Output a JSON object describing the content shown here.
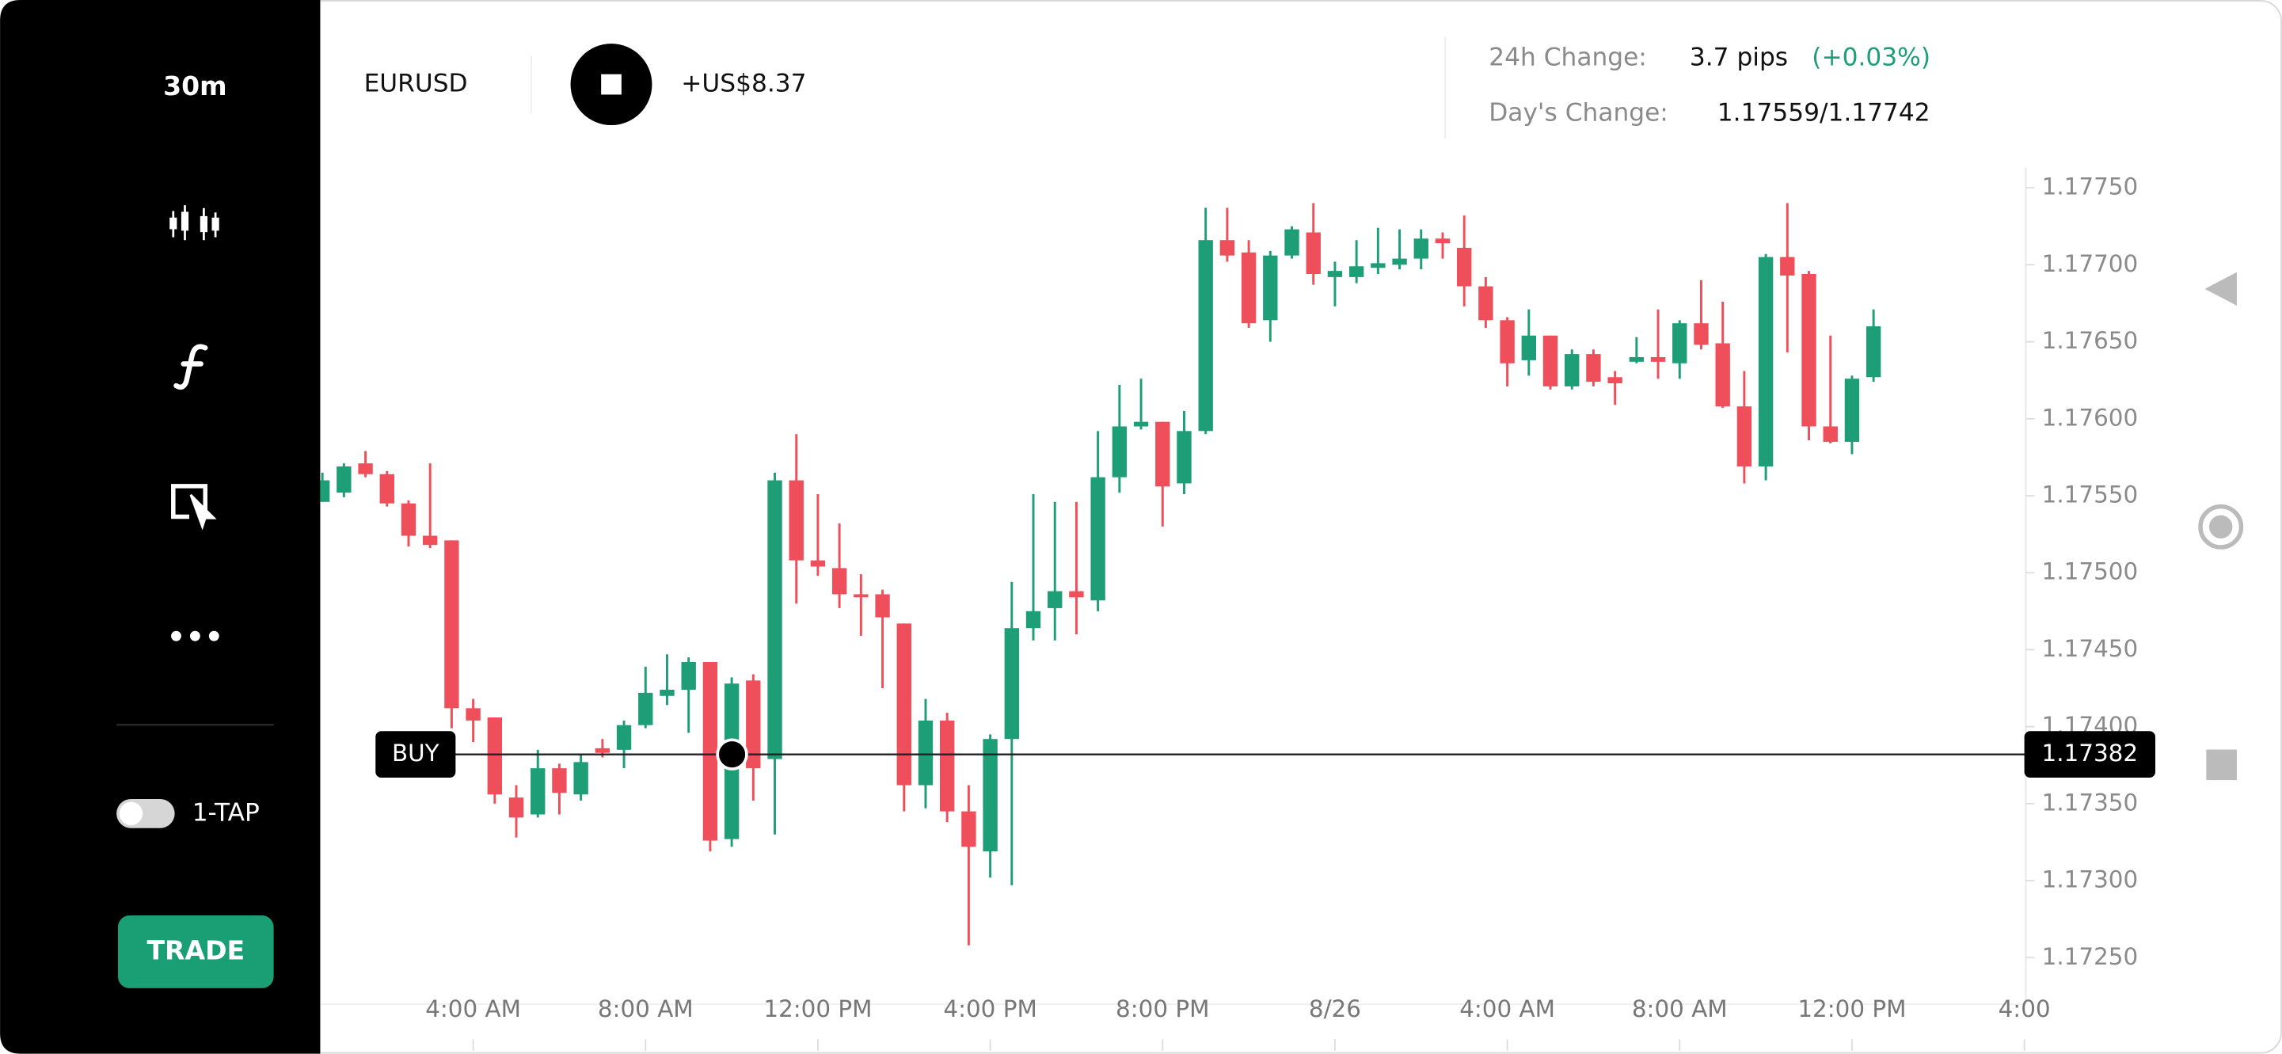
{
  "sidebar": {
    "timeframe": "30m",
    "toggle_label": "1-TAP",
    "trade_button": "TRADE"
  },
  "header": {
    "symbol": "EURUSD",
    "pnl": "+US$8.37",
    "change_24h_label": "24h Change:",
    "change_24h_pips": "3.7 pips",
    "change_24h_pct": "(+0.03%)",
    "days_change_label": "Day's Change:",
    "days_change_value": "1.17559/1.17742"
  },
  "chart_data": {
    "type": "candlestick",
    "up_color": "#1e9e77",
    "down_color": "#ef4f5b",
    "x": [
      0.5,
      1,
      1.5,
      2,
      2.5,
      3,
      3.5,
      4,
      4.5,
      5,
      5.5,
      6,
      6.5,
      7,
      7.5,
      8,
      8.5,
      9,
      9.5,
      10,
      10.5,
      11,
      11.5,
      12,
      12.5,
      13,
      13.5,
      14,
      14.5,
      15,
      15.5,
      16,
      16.5,
      17,
      17.5,
      18,
      18.5,
      19,
      19.5,
      20,
      20.5,
      21,
      21.5,
      22,
      22.5,
      23,
      23.5,
      24,
      24.5,
      25,
      25.5,
      26,
      26.5,
      27,
      27.5,
      28,
      28.5,
      29,
      29.5,
      30,
      30.5,
      31,
      31.5,
      32,
      32.5,
      33,
      33.5,
      34,
      34.5,
      35,
      35.5,
      36,
      36.5
    ],
    "open": [
      1.17546,
      1.17552,
      1.17571,
      1.17564,
      1.17545,
      1.17524,
      1.17521,
      1.17412,
      1.17406,
      1.17354,
      1.17343,
      1.17373,
      1.17356,
      1.17386,
      1.17385,
      1.17401,
      1.1742,
      1.17424,
      1.17442,
      1.17327,
      1.1743,
      1.17379,
      1.1756,
      1.17508,
      1.17503,
      1.17486,
      1.17486,
      1.17467,
      1.17362,
      1.17404,
      1.17345,
      1.17319,
      1.17392,
      1.17464,
      1.17477,
      1.17488,
      1.17482,
      1.17562,
      1.17595,
      1.17598,
      1.17558,
      1.17592,
      1.17716,
      1.17708,
      1.17664,
      1.17706,
      1.17721,
      1.17692,
      1.17692,
      1.17698,
      1.177,
      1.17704,
      1.17717,
      1.17711,
      1.17686,
      1.17664,
      1.17638,
      1.17654,
      1.17621,
      1.17642,
      1.17627,
      1.17637,
      1.1764,
      1.17636,
      1.17662,
      1.17649,
      1.17608,
      1.17569,
      1.17705,
      1.17694,
      1.17595,
      1.17585,
      1.17627
    ],
    "high": [
      1.17565,
      1.17571,
      1.17579,
      1.17566,
      1.17547,
      1.17571,
      1.17521,
      1.17418,
      1.17406,
      1.17362,
      1.17385,
      1.17376,
      1.17382,
      1.17392,
      1.17404,
      1.17439,
      1.17447,
      1.17445,
      1.17442,
      1.17432,
      1.17434,
      1.17565,
      1.1759,
      1.17551,
      1.17532,
      1.17499,
      1.17489,
      1.17467,
      1.17418,
      1.17409,
      1.17362,
      1.17395,
      1.17494,
      1.17551,
      1.17546,
      1.17546,
      1.17592,
      1.17622,
      1.17626,
      1.17598,
      1.17605,
      1.17737,
      1.17737,
      1.17716,
      1.17709,
      1.17725,
      1.1774,
      1.17702,
      1.17716,
      1.17724,
      1.17723,
      1.17723,
      1.17721,
      1.17732,
      1.17692,
      1.17666,
      1.17671,
      1.17654,
      1.17645,
      1.17645,
      1.17631,
      1.17653,
      1.17671,
      1.17664,
      1.1769,
      1.17676,
      1.17631,
      1.17707,
      1.1774,
      1.17696,
      1.17654,
      1.17628,
      1.17671
    ],
    "low": [
      1.17546,
      1.17549,
      1.17562,
      1.17543,
      1.17517,
      1.17516,
      1.17399,
      1.1739,
      1.1735,
      1.17328,
      1.17341,
      1.17343,
      1.17352,
      1.1738,
      1.17373,
      1.17399,
      1.17414,
      1.17396,
      1.17319,
      1.17322,
      1.17352,
      1.1733,
      1.1748,
      1.17498,
      1.17477,
      1.17459,
      1.17425,
      1.17345,
      1.17347,
      1.17338,
      1.17258,
      1.17302,
      1.17297,
      1.17456,
      1.17456,
      1.1746,
      1.17475,
      1.17552,
      1.17593,
      1.1753,
      1.17551,
      1.1759,
      1.17702,
      1.17659,
      1.1765,
      1.17704,
      1.17687,
      1.17673,
      1.17688,
      1.17694,
      1.17697,
      1.17697,
      1.17704,
      1.17673,
      1.17659,
      1.17621,
      1.17628,
      1.17619,
      1.17619,
      1.17621,
      1.17609,
      1.17636,
      1.17626,
      1.17626,
      1.17645,
      1.17607,
      1.17558,
      1.1756,
      1.17643,
      1.17586,
      1.17584,
      1.17577,
      1.17624
    ],
    "close": [
      1.1756,
      1.17569,
      1.17564,
      1.17545,
      1.17524,
      1.17518,
      1.17412,
      1.17404,
      1.17356,
      1.17341,
      1.17373,
      1.17357,
      1.17377,
      1.17383,
      1.17401,
      1.17422,
      1.17424,
      1.17442,
      1.17326,
      1.17428,
      1.17373,
      1.1756,
      1.17508,
      1.17504,
      1.17486,
      1.17484,
      1.17471,
      1.17362,
      1.17404,
      1.17345,
      1.17322,
      1.17392,
      1.17464,
      1.17475,
      1.17488,
      1.17484,
      1.17562,
      1.17595,
      1.17598,
      1.17556,
      1.17592,
      1.17716,
      1.17706,
      1.17662,
      1.17706,
      1.17723,
      1.17694,
      1.17696,
      1.17699,
      1.17701,
      1.17704,
      1.17717,
      1.17714,
      1.17686,
      1.17664,
      1.17636,
      1.17654,
      1.17621,
      1.17642,
      1.17624,
      1.17623,
      1.1764,
      1.17637,
      1.17662,
      1.17648,
      1.17608,
      1.17569,
      1.17705,
      1.17693,
      1.17595,
      1.17585,
      1.17626,
      1.1766
    ],
    "xlim": [
      0.45,
      40
    ],
    "ylim": [
      1.17224,
      1.17764
    ],
    "xticks": [
      {
        "value": 4,
        "label": "4:00 AM"
      },
      {
        "value": 8,
        "label": "8:00 AM"
      },
      {
        "value": 12,
        "label": "12:00 PM"
      },
      {
        "value": 16,
        "label": "4:00 PM"
      },
      {
        "value": 20,
        "label": "8:00 PM"
      },
      {
        "value": 24,
        "label": "8/26"
      },
      {
        "value": 28,
        "label": "4:00 AM"
      },
      {
        "value": 32,
        "label": "8:00 AM"
      },
      {
        "value": 36,
        "label": "12:00 PM"
      },
      {
        "value": 40,
        "label": "4:00"
      }
    ],
    "yticks": [
      {
        "value": 1.1725,
        "label": "1.17250"
      },
      {
        "value": 1.173,
        "label": "1.17300"
      },
      {
        "value": 1.1735,
        "label": "1.17350"
      },
      {
        "value": 1.174,
        "label": "1.17400"
      },
      {
        "value": 1.1745,
        "label": "1.17450"
      },
      {
        "value": 1.175,
        "label": "1.17500"
      },
      {
        "value": 1.1755,
        "label": "1.17550"
      },
      {
        "value": 1.176,
        "label": "1.17600"
      },
      {
        "value": 1.1765,
        "label": "1.17650"
      },
      {
        "value": 1.177,
        "label": "1.17700"
      },
      {
        "value": 1.1775,
        "label": "1.17750"
      }
    ],
    "order_line": {
      "label": "BUY",
      "price": 1.17382
    }
  }
}
